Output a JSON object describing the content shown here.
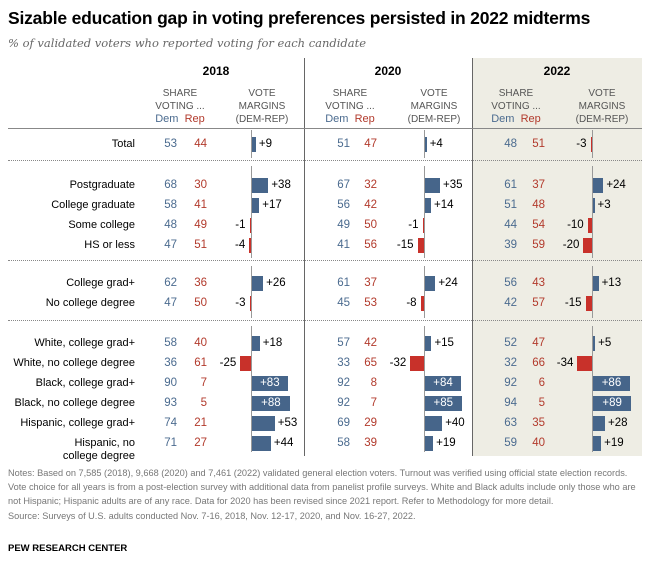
{
  "title": "Sizable education gap in voting preferences persisted in 2022 midterms",
  "subtitle": "% of validated voters who reported voting for each candidate",
  "column_headers": {
    "share": "SHARE",
    "voting": "VOTING ...",
    "dem": "Dem",
    "rep": "Rep",
    "vote": "VOTE",
    "margins": "MARGINS",
    "demrep": "(DEM-REP)"
  },
  "colors": {
    "dem": "#4b6b8f",
    "rep": "#b23a2c",
    "dem_bar": "#46658a",
    "rep_bar": "#c8312a",
    "highlight_bg": "#eeede4"
  },
  "chart_data": {
    "type": "table",
    "title": "Sizable education gap in voting preferences persisted in 2022 midterms",
    "subtitle": "% of validated voters who reported voting for each candidate",
    "years": [
      "2018",
      "2020",
      "2022"
    ],
    "highlighted_year": "2022",
    "rows": [
      {
        "label": "Total",
        "group": 0,
        "values": {
          "2018": {
            "dem": 53,
            "rep": 44,
            "margin": "+9"
          },
          "2020": {
            "dem": 51,
            "rep": 47,
            "margin": "+4"
          },
          "2022": {
            "dem": 48,
            "rep": 51,
            "margin": "-3"
          }
        }
      },
      {
        "label": "Postgraduate",
        "group": 1,
        "values": {
          "2018": {
            "dem": 68,
            "rep": 30,
            "margin": "+38"
          },
          "2020": {
            "dem": 67,
            "rep": 32,
            "margin": "+35"
          },
          "2022": {
            "dem": 61,
            "rep": 37,
            "margin": "+24"
          }
        }
      },
      {
        "label": "College graduate",
        "group": 1,
        "values": {
          "2018": {
            "dem": 58,
            "rep": 41,
            "margin": "+17"
          },
          "2020": {
            "dem": 56,
            "rep": 42,
            "margin": "+14"
          },
          "2022": {
            "dem": 51,
            "rep": 48,
            "margin": "+3"
          }
        }
      },
      {
        "label": "Some college",
        "group": 1,
        "values": {
          "2018": {
            "dem": 48,
            "rep": 49,
            "margin": "-1"
          },
          "2020": {
            "dem": 49,
            "rep": 50,
            "margin": "-1"
          },
          "2022": {
            "dem": 44,
            "rep": 54,
            "margin": "-10"
          }
        }
      },
      {
        "label": "HS or less",
        "group": 1,
        "values": {
          "2018": {
            "dem": 47,
            "rep": 51,
            "margin": "-4"
          },
          "2020": {
            "dem": 41,
            "rep": 56,
            "margin": "-15"
          },
          "2022": {
            "dem": 39,
            "rep": 59,
            "margin": "-20"
          }
        }
      },
      {
        "label": "College grad+",
        "group": 2,
        "values": {
          "2018": {
            "dem": 62,
            "rep": 36,
            "margin": "+26"
          },
          "2020": {
            "dem": 61,
            "rep": 37,
            "margin": "+24"
          },
          "2022": {
            "dem": 56,
            "rep": 43,
            "margin": "+13"
          }
        }
      },
      {
        "label": "No college degree",
        "group": 2,
        "values": {
          "2018": {
            "dem": 47,
            "rep": 50,
            "margin": "-3"
          },
          "2020": {
            "dem": 45,
            "rep": 53,
            "margin": "-8"
          },
          "2022": {
            "dem": 42,
            "rep": 57,
            "margin": "-15"
          }
        }
      },
      {
        "label": "White, college grad+",
        "group": 3,
        "values": {
          "2018": {
            "dem": 58,
            "rep": 40,
            "margin": "+18"
          },
          "2020": {
            "dem": 57,
            "rep": 42,
            "margin": "+15"
          },
          "2022": {
            "dem": 52,
            "rep": 47,
            "margin": "+5"
          }
        }
      },
      {
        "label": "White, no college degree",
        "group": 3,
        "values": {
          "2018": {
            "dem": 36,
            "rep": 61,
            "margin": "-25"
          },
          "2020": {
            "dem": 33,
            "rep": 65,
            "margin": "-32"
          },
          "2022": {
            "dem": 32,
            "rep": 66,
            "margin": "-34"
          }
        }
      },
      {
        "label": "Black, college grad+",
        "group": 3,
        "values": {
          "2018": {
            "dem": 90,
            "rep": 7,
            "margin": "+83"
          },
          "2020": {
            "dem": 92,
            "rep": 8,
            "margin": "+84"
          },
          "2022": {
            "dem": 92,
            "rep": 6,
            "margin": "+86"
          }
        }
      },
      {
        "label": "Black, no college degree",
        "group": 3,
        "values": {
          "2018": {
            "dem": 93,
            "rep": 5,
            "margin": "+88"
          },
          "2020": {
            "dem": 92,
            "rep": 7,
            "margin": "+85"
          },
          "2022": {
            "dem": 94,
            "rep": 5,
            "margin": "+89"
          }
        }
      },
      {
        "label": "Hispanic, college grad+",
        "group": 3,
        "values": {
          "2018": {
            "dem": 74,
            "rep": 21,
            "margin": "+53"
          },
          "2020": {
            "dem": 69,
            "rep": 29,
            "margin": "+40"
          },
          "2022": {
            "dem": 63,
            "rep": 35,
            "margin": "+28"
          }
        }
      },
      {
        "label": "Hispanic, no college degree",
        "label_lines": [
          "Hispanic, no",
          "college degree"
        ],
        "group": 3,
        "values": {
          "2018": {
            "dem": 71,
            "rep": 27,
            "margin": "+44"
          },
          "2020": {
            "dem": 58,
            "rep": 39,
            "margin": "+19"
          },
          "2022": {
            "dem": 59,
            "rep": 40,
            "margin": "+19"
          }
        }
      }
    ]
  },
  "notes": "Notes: Based on 7,585 (2018), 9,668 (2020) and 7,461 (2022) validated general election voters. Turnout was verified using official state election records. Vote choice for all years is from a post-election survey with additional data from panelist profile surveys. White and Black adults include only those who are not Hispanic; Hispanic adults are of any race. Data for 2020 has been revised since 2021 report. Refer to Methodology for more detail.",
  "source": "Source: Surveys of U.S. adults conducted Nov. 7-16, 2018, Nov. 12-17, 2020, and Nov. 16-27, 2022.",
  "brand": "PEW RESEARCH CENTER"
}
